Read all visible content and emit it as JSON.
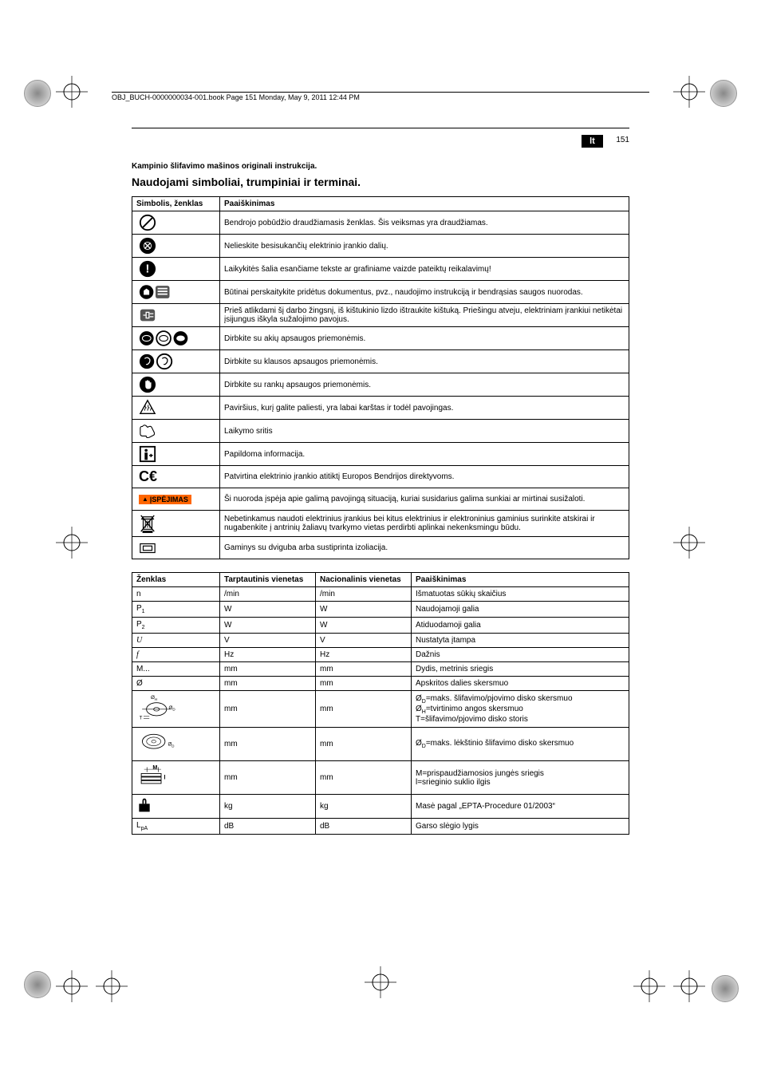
{
  "header_line": "OBJ_BUCH-0000000034-001.book  Page 151  Monday, May 9, 2011  12:44 PM",
  "lang_code": "lt",
  "page_number": "151",
  "subtitle": "Kampinio šlifavimo mašinos originali instrukcija.",
  "title": "Naudojami simboliai, trumpiniai ir terminai.",
  "table1": {
    "headers": [
      "Simbolis, ženklas",
      "Paaiškinimas"
    ],
    "rows": [
      {
        "icon": "prohibit",
        "text": "Bendrojo pobūdžio draudžiamasis ženklas. Šis veiksmas yra draudžiamas."
      },
      {
        "icon": "no-touch",
        "text": "Nelieskite besisukančių elektrinio įrankio dalių."
      },
      {
        "icon": "info-round",
        "text": "Laikykitės šalia esančiame tekste ar grafiniame vaizde pateiktų reikalavimų!"
      },
      {
        "icon": "read-docs",
        "text": "Būtinai perskaitykite pridėtus dokumentus, pvz., naudojimo instrukciją ir bendrąsias saugos nuorodas."
      },
      {
        "icon": "unplug",
        "text": "Prieš atlikdami šį darbo žingsnį, iš kištukinio lizdo ištraukite kištuką. Priešingu atveju, elektriniam įrankiui netikėtai įsijungus iškyla sužalojimo pavojus."
      },
      {
        "icon": "eye-protect",
        "text": "Dirbkite su akių apsaugos priemonėmis."
      },
      {
        "icon": "ear-protect",
        "text": "Dirbkite su klausos apsaugos priemonėmis."
      },
      {
        "icon": "hand-protect",
        "text": "Dirbkite su rankų apsaugos priemonėmis."
      },
      {
        "icon": "hot-surface",
        "text": "Paviršius, kurį galite paliesti, yra labai karštas ir todėl pavojingas."
      },
      {
        "icon": "grip",
        "text": "Laikymo sritis"
      },
      {
        "icon": "info-box",
        "text": "Papildoma informacija."
      },
      {
        "icon": "ce",
        "text": "Patvirtina elektrinio įrankio atitiktį Europos Bendrijos direktyvoms."
      },
      {
        "icon": "warning",
        "text": "Ši nuoroda įspėja apie galimą pavojingą situaciją, kuriai susidarius galima sunkiai ar mirtinai susižaloti."
      },
      {
        "icon": "weee",
        "text": "Nebetinkamus naudoti elektrinius įrankius bei kitus elektrinius ir elektroninius gaminius surinkite atskirai ir nugabenkite į antrinių žaliavų tvarkymo vietas perdirbti aplinkai nekenksmingu būdu."
      },
      {
        "icon": "double-insul",
        "text": "Gaminys su dviguba arba sustiprinta izoliacija."
      }
    ]
  },
  "warn_text": "ĮSPĖJIMAS",
  "table2": {
    "headers": [
      "Ženklas",
      "Tarptautinis vienetas",
      "Nacionalinis vienetas",
      "Paaiškinimas"
    ],
    "rows": [
      {
        "sym": "n",
        "intl": "/min",
        "nat": "/min",
        "desc": "Išmatuotas sūkių skaičius"
      },
      {
        "sym": "P<sub>1</sub>",
        "intl": "W",
        "nat": "W",
        "desc": "Naudojamoji galia"
      },
      {
        "sym": "P<sub>2</sub>",
        "intl": "W",
        "nat": "W",
        "desc": "Atiduodamoji galia"
      },
      {
        "sym": "<span class='fstyle'>U</span>",
        "intl": "V",
        "nat": "V",
        "desc": "Nustatyta įtampa"
      },
      {
        "sym": "<span class='fstyle'>f</span>",
        "intl": "Hz",
        "nat": "Hz",
        "desc": "Dažnis"
      },
      {
        "sym": "M...",
        "intl": "mm",
        "nat": "mm",
        "desc": "Dydis, metrinis sriegis"
      },
      {
        "sym": "Ø",
        "intl": "mm",
        "nat": "mm",
        "desc": "Apskritos dalies skersmuo"
      },
      {
        "sym": "diag-disc",
        "intl": "mm",
        "nat": "mm",
        "desc": "Ø<sub>D</sub>=maks. šlifavimo/pjovimo disko skersmuo<br>Ø<sub>H</sub>=tvirtinimo angos skersmuo<br>T=šlifavimo/pjovimo disko storis"
      },
      {
        "sym": "diag-plate",
        "intl": "mm",
        "nat": "mm",
        "desc": "Ø<sub>D</sub>=maks. lėkštinio šlifavimo disko skersmuo"
      },
      {
        "sym": "diag-thread",
        "intl": "mm",
        "nat": "mm",
        "desc": "M=prispaudžiamosios jungės sriegis<br>l=srieginio suklio ilgis"
      },
      {
        "sym": "diag-weight",
        "intl": "kg",
        "nat": "kg",
        "desc": "Masė pagal „EPTA-Procedure 01/2003“"
      },
      {
        "sym": "L<sub>pA</sub>",
        "intl": "dB",
        "nat": "dB",
        "desc": "Garso slėgio lygis"
      }
    ]
  }
}
